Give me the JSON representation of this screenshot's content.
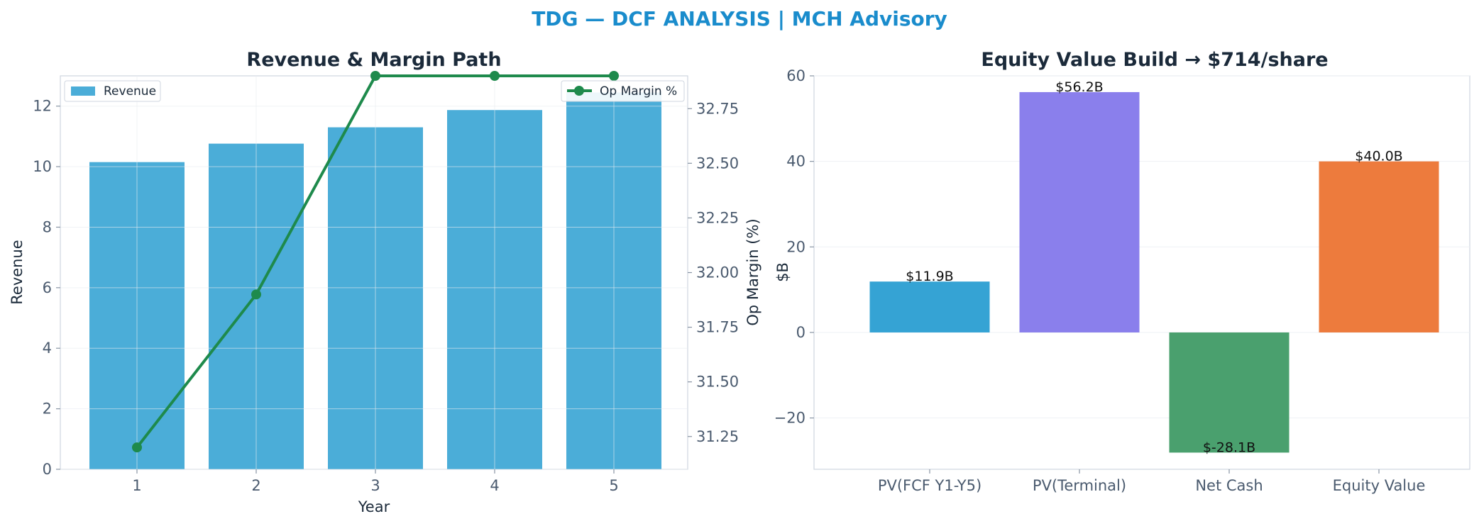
{
  "suptitle": "TDG — DCF ANALYSIS | MCH Advisory",
  "colors": {
    "title": "#1a8ccc",
    "revenue_bar": "#4badd8",
    "margin_line": "#1e8a4c",
    "pv_fcf": "#35a3d4",
    "pv_terminal": "#8a7fec",
    "net_cash": "#4aa06e",
    "equity_value": "#ed7b3d"
  },
  "chart_data": [
    {
      "type": "bar",
      "title": "Revenue & Margin Path",
      "xlabel": "Year",
      "ylabel": "Revenue",
      "y2label": "Op Margin (%)",
      "categories": [
        "1",
        "2",
        "3",
        "4",
        "5"
      ],
      "ylim": [
        0,
        13
      ],
      "yticks": [
        "0",
        "2",
        "4",
        "6",
        "8",
        "10",
        "12"
      ],
      "y2lim": [
        31.1,
        32.9
      ],
      "y2ticks": [
        "31.25",
        "31.50",
        "31.75",
        "32.00",
        "32.25",
        "32.50",
        "32.75"
      ],
      "grid": true,
      "series": [
        {
          "name": "Revenue",
          "type": "bar",
          "values": [
            10.15,
            10.76,
            11.3,
            11.87,
            12.45
          ]
        },
        {
          "name": "Op Margin %",
          "type": "line",
          "axis": "secondary",
          "values": [
            31.2,
            31.9,
            32.9,
            32.9,
            32.9
          ]
        }
      ],
      "legend": [
        {
          "label": "Revenue",
          "placement": "top-left"
        },
        {
          "label": "Op Margin %",
          "placement": "top-right"
        }
      ]
    },
    {
      "type": "bar",
      "title": "Equity Value Build → $714/share",
      "xlabel": "",
      "ylabel": "$B",
      "categories": [
        "PV(FCF Y1-Y5)",
        "PV(Terminal)",
        "Net Cash",
        "Equity Value"
      ],
      "values": [
        11.9,
        56.2,
        -28.1,
        40.0
      ],
      "data_labels": [
        "$11.9B",
        "$56.2B",
        "$-28.1B",
        "$40.0B"
      ],
      "ylim": [
        -32,
        60
      ],
      "yticks": [
        "−20",
        "0",
        "20",
        "40",
        "60"
      ],
      "grid": true
    }
  ]
}
